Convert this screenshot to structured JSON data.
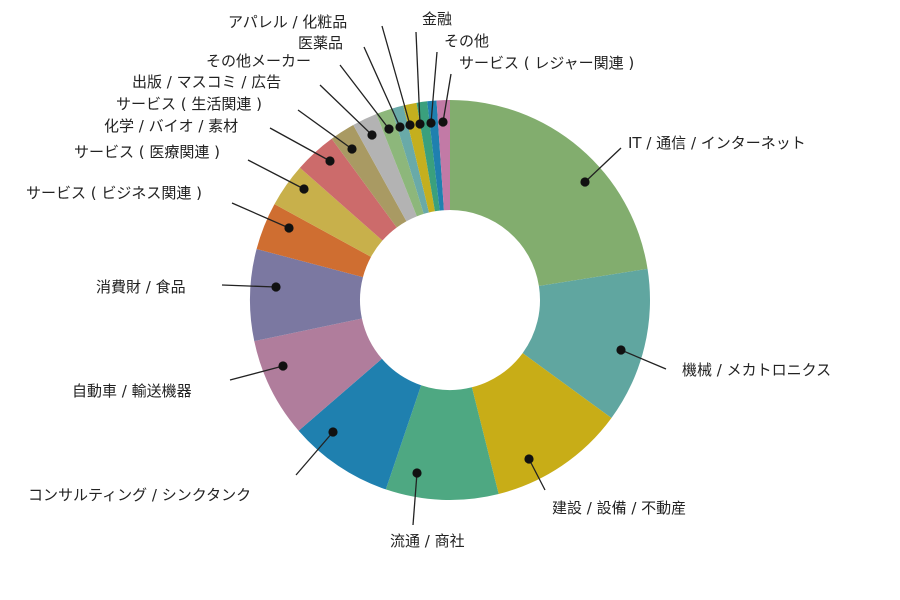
{
  "chart_data": {
    "type": "pie",
    "donut": true,
    "title": "",
    "slices": [
      {
        "label": "IT / 通信 / インターネット",
        "value": 21.0,
        "color": "#82ad6e"
      },
      {
        "label": "機械 / メカトロニクス",
        "value": 11.7,
        "color": "#60a6a0"
      },
      {
        "label": "建設 / 設備 / 不動産",
        "value": 10.3,
        "color": "#c8ad17"
      },
      {
        "label": "流通 / 商社",
        "value": 8.5,
        "color": "#4ea882"
      },
      {
        "label": "コンサルティング / シンクタンク",
        "value": 7.9,
        "color": "#1f80af"
      },
      {
        "label": "自動車 / 輸送機器",
        "value": 7.5,
        "color": "#b07d9c"
      },
      {
        "label": "消費財 / 食品",
        "value": 6.9,
        "color": "#7b78a1"
      },
      {
        "label": "サービス ( ビジネス関連 )",
        "value": 3.6,
        "color": "#cf6e31"
      },
      {
        "label": "サービス ( 医療関連 )",
        "value": 3.3,
        "color": "#c8b04b"
      },
      {
        "label": "化学 / バイオ / 素材",
        "value": 3.2,
        "color": "#cc6b6b"
      },
      {
        "label": "サービス ( 生活関連 )",
        "value": 1.9,
        "color": "#a99a63"
      },
      {
        "label": "出版 / マスコミ / 広告",
        "value": 1.9,
        "color": "#b3b3b3"
      },
      {
        "label": "その他メーカー",
        "value": 1.2,
        "color": "#8db77b"
      },
      {
        "label": "医薬品",
        "value": 0.9,
        "color": "#69aaa8"
      },
      {
        "label": "アパレル / 化粧品",
        "value": 1.0,
        "color": "#c4af1e"
      },
      {
        "label": "金融",
        "value": 0.8,
        "color": "#3aa07d"
      },
      {
        "label": "その他",
        "value": 0.7,
        "color": "#1f80af"
      },
      {
        "label": "サービス ( レジャー関連 )",
        "value": 1.0,
        "color": "#c27aa6"
      }
    ]
  }
}
